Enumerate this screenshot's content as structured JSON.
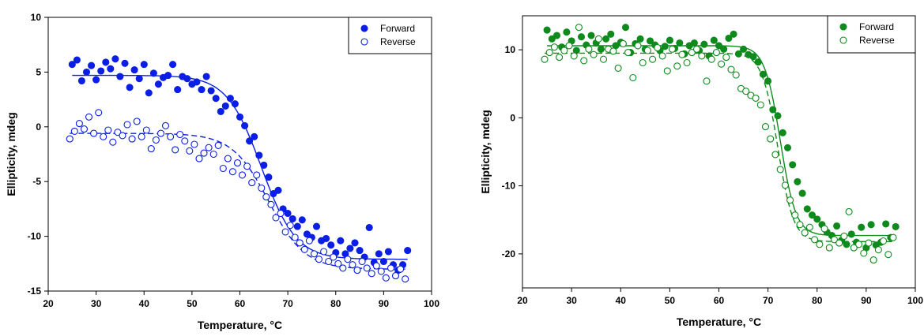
{
  "chart_data": [
    {
      "type": "scatter",
      "title": "",
      "xlabel": "Temperature, °C",
      "ylabel": "Ellipticity, mdeg",
      "xlim": [
        20,
        100
      ],
      "ylim": [
        -15,
        10
      ],
      "xticks": [
        20,
        30,
        40,
        50,
        60,
        70,
        80,
        90,
        100
      ],
      "yticks": [
        -15,
        -10,
        -5,
        0,
        5,
        10
      ],
      "grid": false,
      "legend": "top-right",
      "color": "#0a1ee6",
      "series": [
        {
          "name": "Forward",
          "marker": "filled-circle",
          "x": [
            25,
            26,
            27,
            28,
            29,
            30,
            31,
            32,
            33,
            34,
            35,
            36,
            37,
            38,
            39,
            40,
            41,
            42,
            43,
            44,
            45,
            46,
            47,
            48,
            49,
            50,
            51,
            52,
            53,
            54,
            55,
            56,
            57,
            58,
            59,
            60,
            61,
            62,
            63,
            64,
            65,
            66,
            67,
            68,
            69,
            70,
            71,
            72,
            73,
            74,
            75,
            76,
            77,
            78,
            79,
            80,
            81,
            82,
            83,
            84,
            85,
            86,
            87,
            88,
            89,
            90,
            91,
            92,
            93,
            94,
            95
          ],
          "y": [
            5.7,
            6.1,
            4.2,
            5.0,
            5.6,
            4.3,
            5.1,
            5.9,
            5.3,
            6.2,
            4.6,
            5.8,
            3.6,
            5.2,
            4.4,
            5.7,
            3.1,
            4.9,
            3.9,
            4.5,
            4.7,
            5.7,
            3.4,
            4.6,
            4.4,
            3.9,
            4.1,
            3.4,
            4.6,
            3.3,
            2.6,
            1.4,
            1.9,
            2.6,
            2.1,
            0.9,
            0.1,
            -1.3,
            -0.9,
            -2.6,
            -3.5,
            -4.6,
            -6.1,
            -5.8,
            -7.5,
            -7.9,
            -8.4,
            -9.1,
            -8.5,
            -9.8,
            -10.1,
            -9.1,
            -10.4,
            -10.2,
            -10.8,
            -11.5,
            -10.4,
            -11.6,
            -11.1,
            -10.6,
            -11.3,
            -11.9,
            -9.2,
            -12.4,
            -11.6,
            -12.3,
            -11.4,
            -12.6,
            -13.1,
            -12.6,
            -11.3
          ]
        },
        {
          "name": "Reverse",
          "marker": "open-circle",
          "x": [
            24.5,
            25.5,
            26.5,
            27.5,
            28.5,
            29.5,
            30.5,
            31.5,
            32.5,
            33.5,
            34.5,
            35.5,
            36.5,
            37.5,
            38.5,
            39.5,
            40.5,
            41.5,
            42.5,
            43.5,
            44.5,
            45.5,
            46.5,
            47.5,
            48.5,
            49.5,
            50.5,
            51.5,
            52.5,
            53.5,
            54.5,
            55.5,
            56.5,
            57.5,
            58.5,
            59.5,
            60.5,
            61.5,
            62.5,
            63.5,
            64.5,
            65.5,
            66.5,
            67.5,
            68.5,
            69.5,
            70.5,
            71.5,
            72.5,
            73.5,
            74.5,
            75.5,
            76.5,
            77.5,
            78.5,
            79.5,
            80.5,
            81.5,
            82.5,
            83.5,
            84.5,
            85.5,
            86.5,
            87.5,
            88.5,
            89.5,
            90.5,
            91.5,
            92.5,
            93.5,
            94.5
          ],
          "y": [
            -1.1,
            -0.4,
            0.3,
            -0.2,
            0.9,
            -0.6,
            1.3,
            -0.9,
            -0.3,
            -1.4,
            -0.5,
            -0.8,
            0.2,
            -1.1,
            0.5,
            -0.9,
            -0.3,
            -2.0,
            -1.2,
            -0.6,
            0.1,
            -0.9,
            -2.1,
            -0.7,
            -1.3,
            -2.2,
            -1.6,
            -2.9,
            -2.4,
            -1.9,
            -2.5,
            -1.7,
            -3.8,
            -2.9,
            -4.1,
            -3.3,
            -4.4,
            -3.6,
            -5.1,
            -4.4,
            -5.6,
            -6.4,
            -7.1,
            -8.3,
            -7.9,
            -9.6,
            -9.0,
            -10.1,
            -10.6,
            -11.2,
            -10.4,
            -11.6,
            -12.1,
            -11.4,
            -12.3,
            -11.9,
            -12.5,
            -12.9,
            -12.1,
            -12.6,
            -13.1,
            -12.3,
            -12.9,
            -13.4,
            -12.7,
            -13.2,
            -13.8,
            -12.9,
            -13.6,
            -13.0,
            -13.9
          ]
        }
      ]
    },
    {
      "type": "scatter",
      "title": "",
      "xlabel": "Temperature, °C",
      "ylabel": "Ellipticity, mdeg",
      "xlim": [
        20,
        100
      ],
      "ylim": [
        -25,
        15
      ],
      "xticks": [
        20,
        30,
        40,
        50,
        60,
        70,
        80,
        90,
        100
      ],
      "yticks": [
        -20,
        -10,
        0,
        10
      ],
      "grid": false,
      "legend": "top-right",
      "color": "#0f8a1c",
      "series": [
        {
          "name": "Forward",
          "marker": "filled-circle",
          "x": [
            25,
            26,
            27,
            28,
            29,
            30,
            31,
            32,
            33,
            34,
            35,
            36,
            37,
            38,
            39,
            40,
            41,
            42,
            43,
            44,
            45,
            46,
            47,
            48,
            49,
            50,
            51,
            52,
            53,
            54,
            55,
            56,
            57,
            58,
            59,
            60,
            61,
            62,
            63,
            64,
            65,
            66,
            67,
            68,
            69,
            70,
            71,
            72,
            73,
            74,
            75,
            76,
            77,
            78,
            79,
            80,
            81,
            82,
            83,
            84,
            85,
            86,
            87,
            88,
            89,
            90,
            91,
            92,
            93,
            94,
            95,
            96
          ],
          "y": [
            12.9,
            11.6,
            12.1,
            10.4,
            12.6,
            11.3,
            9.9,
            11.9,
            10.7,
            12.1,
            11.0,
            10.1,
            11.6,
            12.3,
            10.6,
            11.1,
            13.3,
            9.6,
            10.9,
            11.6,
            10.1,
            11.3,
            10.7,
            9.9,
            10.5,
            11.4,
            10.2,
            11.0,
            9.4,
            10.6,
            11.0,
            9.9,
            10.8,
            9.1,
            11.4,
            10.6,
            10.1,
            11.7,
            12.3,
            9.4,
            10.1,
            9.3,
            9.0,
            8.2,
            6.4,
            5.4,
            1.2,
            0.3,
            -2.2,
            -4.4,
            -6.9,
            -9.4,
            -11.1,
            -13.4,
            -14.3,
            -14.9,
            -15.7,
            -16.8,
            -17.3,
            -15.9,
            -18.0,
            -18.6,
            -17.1,
            -18.3,
            -16.1,
            -19.1,
            -15.7,
            -18.7,
            -18.3,
            -15.6,
            -17.6,
            -16.0
          ]
        },
        {
          "name": "Reverse",
          "marker": "open-circle",
          "x": [
            24.5,
            25.5,
            26.5,
            27.5,
            28.5,
            29.5,
            30.5,
            31.5,
            32.5,
            33.5,
            34.5,
            35.5,
            36.5,
            37.5,
            38.5,
            39.5,
            40.5,
            41.5,
            42.5,
            43.5,
            44.5,
            45.5,
            46.5,
            47.5,
            48.5,
            49.5,
            50.5,
            51.5,
            52.5,
            53.5,
            54.5,
            55.5,
            56.5,
            57.5,
            58.5,
            59.5,
            60.5,
            61.5,
            62.5,
            63.5,
            64.5,
            65.5,
            66.5,
            67.5,
            68.5,
            69.5,
            70.5,
            71.5,
            72.5,
            73.5,
            74.5,
            75.5,
            76.5,
            77.5,
            78.5,
            79.5,
            80.5,
            81.5,
            82.5,
            83.5,
            84.5,
            85.5,
            86.5,
            87.5,
            88.5,
            89.5,
            90.5,
            91.5,
            92.5,
            93.5,
            94.5,
            95.5
          ],
          "y": [
            8.6,
            9.6,
            10.4,
            8.9,
            9.9,
            10.6,
            9.1,
            13.3,
            8.4,
            10.1,
            9.3,
            11.6,
            8.6,
            10.1,
            9.8,
            7.3,
            10.9,
            9.6,
            5.9,
            10.6,
            8.1,
            9.9,
            8.6,
            10.3,
            9.1,
            6.9,
            10.1,
            7.6,
            9.3,
            8.1,
            9.6,
            10.1,
            9.1,
            5.4,
            8.6,
            9.6,
            7.9,
            8.9,
            7.1,
            6.3,
            4.3,
            3.9,
            3.3,
            2.9,
            1.9,
            -1.3,
            -3.1,
            -5.4,
            -7.6,
            -9.9,
            -12.1,
            -14.3,
            -15.7,
            -16.9,
            -16.1,
            -17.9,
            -18.6,
            -16.3,
            -19.1,
            -17.9,
            -18.4,
            -17.4,
            -13.8,
            -19.1,
            -18.6,
            -19.9,
            -18.4,
            -20.9,
            -19.4,
            -18.1,
            -20.1,
            -17.6
          ]
        }
      ]
    }
  ]
}
